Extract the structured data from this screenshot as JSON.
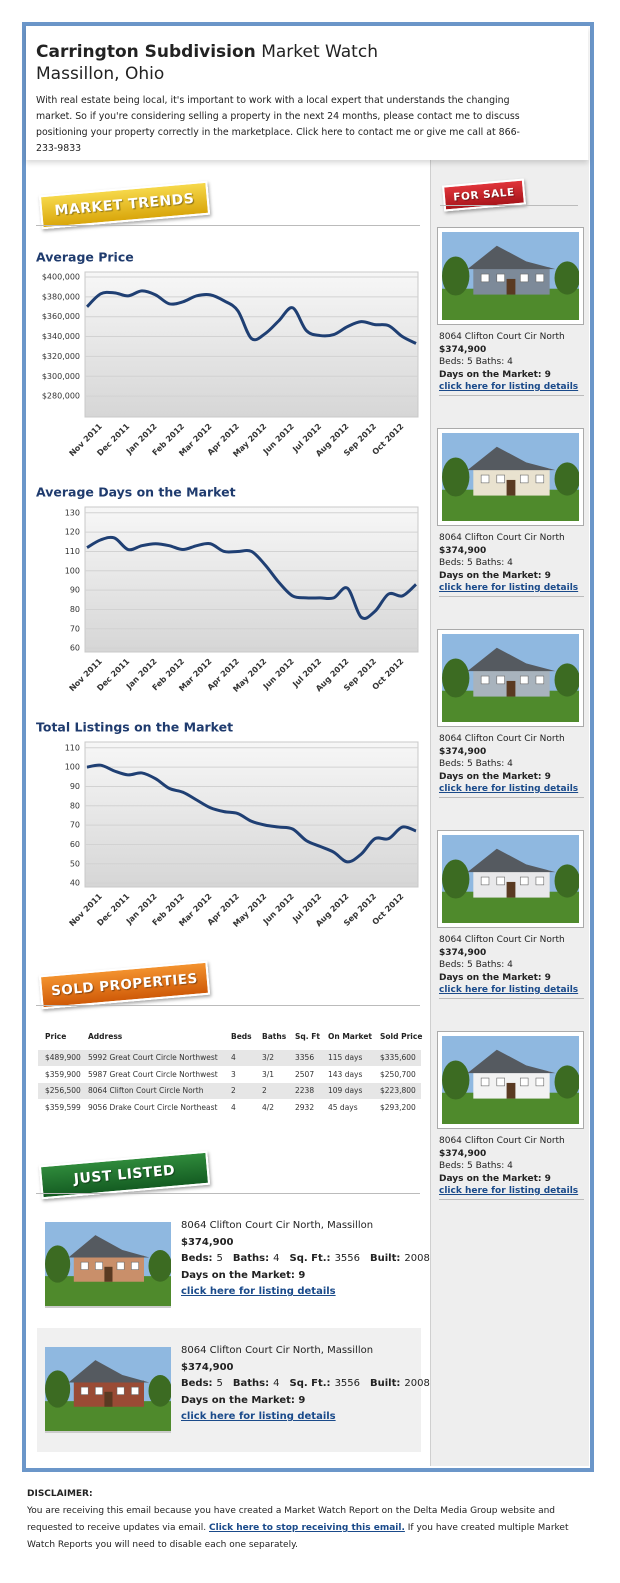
{
  "header": {
    "title_bold": "Carrington Subdivision",
    "title_rest": "Market Watch",
    "location": "Massillon, Ohio",
    "intro": "With real estate being local, it's important to work with a local expert that understands the changing market. So if you're considering selling a property in the next 24 months, please contact me to discuss positioning your property correctly in the marketplace. Click here to contact me or give me call at 866-233-9833"
  },
  "sections": {
    "market_trends": "MARKET TRENDS",
    "for_sale": "FOR SALE",
    "sold": "SOLD PROPERTIES",
    "just_listed": "JUST LISTED"
  },
  "chart_data": [
    {
      "type": "line",
      "title": "Average Price",
      "color": "#1f3f73",
      "grid": true,
      "categories": [
        null,
        "Nov 2011",
        null,
        "Dec 2011",
        null,
        "Jan 2012",
        null,
        "Feb 2012",
        null,
        "Mar 2012",
        null,
        "Apr 2012",
        null,
        "May 2012",
        null,
        "Jun 2012",
        null,
        "Jul 2012",
        null,
        "Aug 2012",
        null,
        "Sep 2012",
        null,
        "Oct 2012",
        null
      ],
      "values": [
        370000,
        383000,
        384000,
        381000,
        386000,
        382000,
        373000,
        375000,
        381000,
        382000,
        376000,
        366000,
        338000,
        343000,
        356000,
        369000,
        346000,
        341000,
        342000,
        350000,
        355000,
        352000,
        351000,
        340000,
        333000
      ],
      "ylim": [
        259000,
        405000
      ],
      "yticks": [
        {
          "value": 280000,
          "label": "$280,000"
        },
        {
          "value": 300000,
          "label": "$300,000"
        },
        {
          "value": 320000,
          "label": "$320,000"
        },
        {
          "value": 340000,
          "label": "$340,000"
        },
        {
          "value": 360000,
          "label": "$360,000"
        },
        {
          "value": 380000,
          "label": "$380,000"
        },
        {
          "value": 400000,
          "label": "$400,000"
        }
      ]
    },
    {
      "type": "line",
      "title": "Average Days on the Market",
      "color": "#1f3f73",
      "grid": true,
      "categories": [
        null,
        "Nov 2011",
        null,
        "Dec 2011",
        null,
        "Jan 2012",
        null,
        "Feb 2012",
        null,
        "Mar 2012",
        null,
        "Apr 2012",
        null,
        "May 2012",
        null,
        "Jun 2012",
        null,
        "Jul 2012",
        null,
        "Aug 2012",
        null,
        "Sep 2012",
        null,
        "Oct 2012",
        null
      ],
      "values": [
        112,
        116,
        117,
        111,
        113,
        114,
        113,
        111,
        113,
        114,
        110,
        110,
        110,
        103,
        94,
        87,
        86,
        86,
        86,
        91,
        76,
        79,
        88,
        87,
        93
      ],
      "ylim": [
        58,
        133
      ],
      "yticks": [
        60,
        70,
        80,
        90,
        100,
        110,
        120,
        130
      ]
    },
    {
      "type": "line",
      "title": "Total Listings on the Market",
      "color": "#1f3f73",
      "grid": true,
      "categories": [
        null,
        "Nov 2011",
        null,
        "Dec 2011",
        null,
        "Jan 2012",
        null,
        "Feb 2012",
        null,
        "Mar 2012",
        null,
        "Apr 2012",
        null,
        "May 2012",
        null,
        "Jun 2012",
        null,
        "Jul 2012",
        null,
        "Aug 2012",
        null,
        "Sep 2012",
        null,
        "Oct 2012",
        null
      ],
      "values": [
        100,
        101,
        98,
        96,
        97,
        94,
        89,
        87,
        83,
        79,
        77,
        76,
        72,
        70,
        69,
        68,
        62,
        59,
        56,
        51,
        55,
        63,
        63,
        69,
        67
      ],
      "ylim": [
        38,
        113
      ],
      "yticks": [
        40,
        50,
        60,
        70,
        80,
        90,
        100,
        110
      ]
    }
  ],
  "sold_table": {
    "columns": [
      "Price",
      "Address",
      "Beds",
      "Baths",
      "Sq. Ft",
      "On Market",
      "Sold Price"
    ],
    "rows": [
      [
        "$489,900",
        "5992 Great Court Circle Northwest",
        "4",
        "3/2",
        "3356",
        "115 days",
        "$335,600"
      ],
      [
        "$359,900",
        "5987 Great Court Circle Northwest",
        "3",
        "3/1",
        "2507",
        "143 days",
        "$250,700"
      ],
      [
        "$256,500",
        "8064 Clifton Court Circle North",
        "2",
        "2",
        "2238",
        "109 days",
        "$223,800"
      ],
      [
        "$359,599",
        "9056 Drake Court Circle Northeast",
        "4",
        "4/2",
        "2932",
        "45 days",
        "$293,200"
      ]
    ]
  },
  "just_listed": [
    {
      "address": "8064 Clifton Court Cir North, Massillon",
      "price": "$374,900",
      "details": [
        {
          "label": "Beds:",
          "value": "5"
        },
        {
          "label": "Baths:",
          "value": "4"
        },
        {
          "label": "Sq. Ft.:",
          "value": "3556"
        },
        {
          "label": "Built:",
          "value": "2008"
        }
      ],
      "days": "Days on the Market: 9",
      "link": "click here for listing details"
    },
    {
      "address": "8064 Clifton Court Cir North, Massillon",
      "price": "$374,900",
      "details": [
        {
          "label": "Beds:",
          "value": "5"
        },
        {
          "label": "Baths:",
          "value": "4"
        },
        {
          "label": "Sq. Ft.:",
          "value": "3556"
        },
        {
          "label": "Built:",
          "value": "2008"
        }
      ],
      "days": "Days on the Market: 9",
      "link": "click here for listing details"
    }
  ],
  "for_sale": [
    {
      "address": "8064 Clifton Court Cir North",
      "price": "$374,900",
      "beds_baths": "Beds: 5 Baths: 4",
      "days": "Days on the Market: 9",
      "link": "click here for listing details"
    },
    {
      "address": "8064 Clifton Court Cir North",
      "price": "$374,900",
      "beds_baths": "Beds: 5 Baths: 4",
      "days": "Days on the Market: 9",
      "link": "click here for listing details"
    },
    {
      "address": "8064 Clifton Court Cir North",
      "price": "$374,900",
      "beds_baths": "Beds: 5 Baths: 4",
      "days": "Days on the Market: 9",
      "link": "click here for listing details"
    },
    {
      "address": "8064 Clifton Court Cir North",
      "price": "$374,900",
      "beds_baths": "Beds: 5 Baths: 4",
      "days": "Days on the Market: 9",
      "link": "click here for listing details"
    },
    {
      "address": "8064 Clifton Court Cir North",
      "price": "$374,900",
      "beds_baths": "Beds: 5 Baths: 4",
      "days": "Days on the Market: 9",
      "link": "click here for listing details"
    }
  ],
  "disclaimer": {
    "heading": "DISCLAIMER:",
    "text_before": "You are receiving this email because you have created a Market Watch Report on the Delta Media Group website and requested to receive updates via email.",
    "link": "Click here to stop receiving this email.",
    "text_after": "If you have created multiple Market Watch Reports you will need to disable each one separately."
  }
}
